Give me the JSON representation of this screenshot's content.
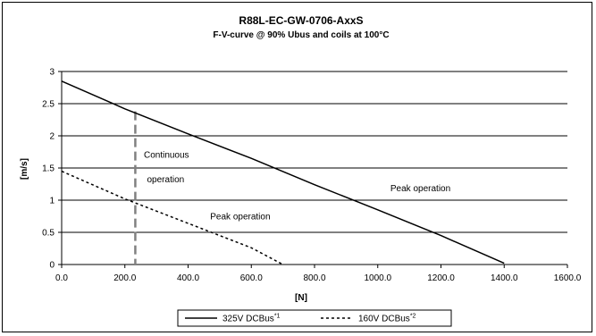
{
  "chart_data": {
    "type": "line",
    "title": "R88L-EC-GW-0706-AxxS",
    "subtitle": "F-V-curve @ 90% Ubus and coils at 100°C",
    "xlabel": "[N]",
    "ylabel": "[m/s]",
    "xlim": [
      0,
      1600
    ],
    "ylim": [
      0,
      3
    ],
    "x_ticks": [
      "0.0",
      "200.0",
      "400.0",
      "600.0",
      "800.0",
      "1000.0",
      "1200.0",
      "1400.0",
      "1600.0"
    ],
    "y_ticks": [
      "0",
      "0.5",
      "1",
      "1.5",
      "2",
      "2.5",
      "3"
    ],
    "grid": "horizontal",
    "legend_position": "bottom",
    "series": [
      {
        "name": "325V DCBus",
        "name_sup": "*1",
        "style": "solid",
        "color": "#000000",
        "points": [
          [
            0,
            2.85
          ],
          [
            200,
            2.42
          ],
          [
            400,
            2.03
          ],
          [
            600,
            1.65
          ],
          [
            800,
            1.24
          ],
          [
            1000,
            0.85
          ],
          [
            1200,
            0.45
          ],
          [
            1400,
            0.02
          ]
        ]
      },
      {
        "name": "160V DCBus",
        "name_sup": "*2",
        "style": "dashed",
        "color": "#000000",
        "points": [
          [
            0,
            1.45
          ],
          [
            200,
            1.02
          ],
          [
            400,
            0.64
          ],
          [
            600,
            0.26
          ],
          [
            700,
            0.0
          ]
        ]
      }
    ],
    "vertical_marker": {
      "x": 233,
      "y_top": 2.38,
      "style": "dashed",
      "color": "#808080"
    },
    "annotations": [
      {
        "text": "Continuous",
        "x": 260,
        "y": 1.7
      },
      {
        "text": "operation",
        "x": 270,
        "y": 1.32
      },
      {
        "text": "Peak operation",
        "x": 1040,
        "y": 1.18
      },
      {
        "text": "Peak operation",
        "x": 470,
        "y": 0.74
      }
    ]
  }
}
